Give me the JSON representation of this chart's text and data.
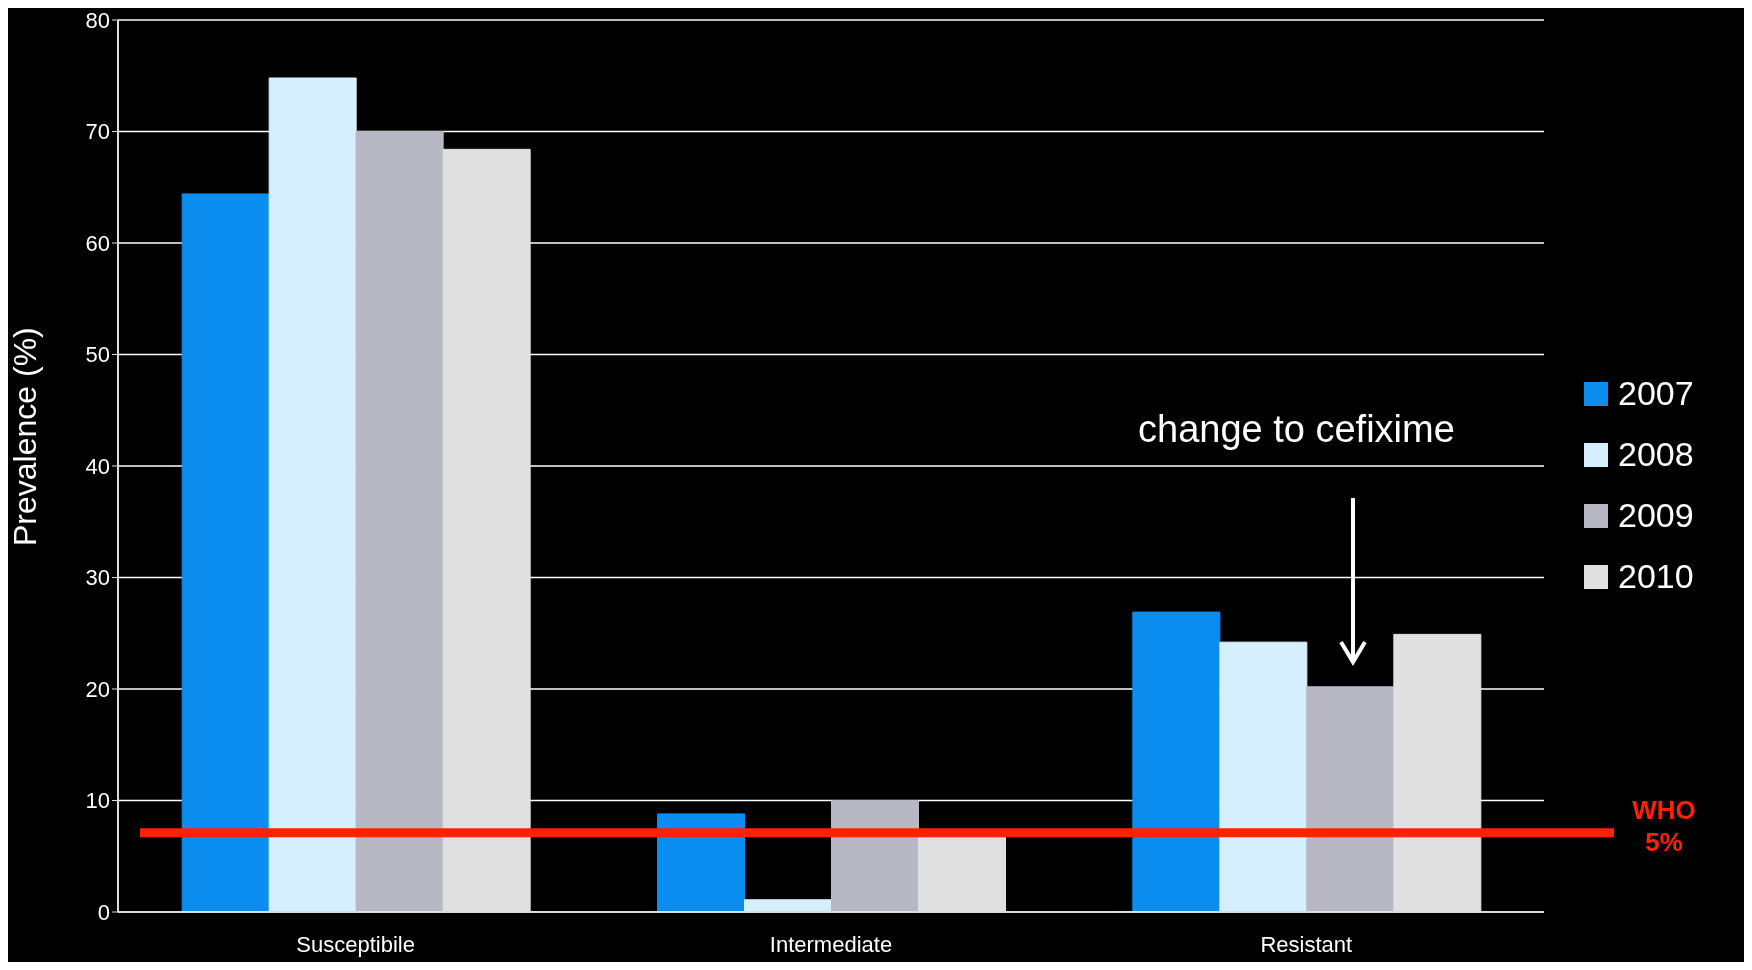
{
  "chart_data": {
    "type": "bar",
    "ylabel": "Prevalence (%)",
    "categories": [
      "Susceptibile",
      "Intermediate",
      "Resistant"
    ],
    "series": [
      {
        "name": "2007",
        "color": "#0a8def",
        "values": [
          64.4,
          8.8,
          26.9
        ]
      },
      {
        "name": "2008",
        "color": "#d5efff",
        "values": [
          74.8,
          1.1,
          24.2
        ]
      },
      {
        "name": "2009",
        "color": "#b8b8c5",
        "values": [
          70,
          10,
          20.2
        ]
      },
      {
        "name": "2010",
        "color": "#e0e0e0",
        "values": [
          68.4,
          7,
          24.9
        ]
      }
    ],
    "ylim": [
      0,
      80
    ],
    "yticks": [
      0,
      10,
      20,
      30,
      40,
      50,
      60,
      70,
      80
    ],
    "grid": "y",
    "legend": "right",
    "ref_lines": [
      {
        "axis": "y",
        "value": 7.1,
        "label": "WHO\n5%",
        "color": "#ff2200"
      }
    ],
    "annotations": [
      "change to cefixime"
    ]
  }
}
